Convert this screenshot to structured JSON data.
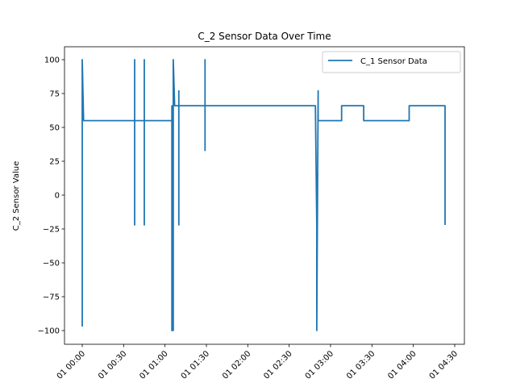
{
  "chart_data": {
    "type": "line",
    "title": "C_2 Sensor Data Over Time",
    "xlabel": "",
    "ylabel": "C_2 Sensor Value",
    "legend": {
      "placement": "top-right",
      "entries": [
        "C_1 Sensor Data"
      ]
    },
    "grid": false,
    "line_color": "#1f77b4",
    "xlim": [
      "00:00",
      "04:30"
    ],
    "ylim": [
      -110,
      110
    ],
    "y_ticks": [
      -100,
      -75,
      -50,
      -25,
      0,
      25,
      50,
      75,
      100
    ],
    "x_ticks": [
      {
        "t": "00:00",
        "label": "01 00:00"
      },
      {
        "t": "00:30",
        "label": "01 00:30"
      },
      {
        "t": "01:00",
        "label": "01 01:00"
      },
      {
        "t": "01:30",
        "label": "01 01:30"
      },
      {
        "t": "02:00",
        "label": "01 02:00"
      },
      {
        "t": "02:30",
        "label": "01 02:30"
      },
      {
        "t": "03:00",
        "label": "01 03:00"
      },
      {
        "t": "03:30",
        "label": "01 03:30"
      },
      {
        "t": "04:00",
        "label": "01 04:00"
      },
      {
        "t": "04:30",
        "label": "01 04:30"
      }
    ],
    "series": [
      {
        "name": "C_1 Sensor Data",
        "points": [
          [
            "00:00",
            -97
          ],
          [
            "00:00",
            -55
          ],
          [
            "00:00",
            100
          ],
          [
            "00:01",
            55
          ],
          [
            "00:38",
            55
          ],
          [
            "00:38",
            -22
          ],
          [
            "00:38",
            100
          ],
          [
            "00:38",
            55
          ],
          [
            "00:45",
            55
          ],
          [
            "00:45",
            -22
          ],
          [
            "00:45",
            100
          ],
          [
            "00:45",
            55
          ],
          [
            "01:05",
            55
          ],
          [
            "01:05",
            -100
          ],
          [
            "01:05",
            66
          ],
          [
            "01:06",
            -100
          ],
          [
            "01:06",
            100
          ],
          [
            "01:07",
            66
          ],
          [
            "01:10",
            66
          ],
          [
            "01:10",
            -22
          ],
          [
            "01:10",
            77
          ],
          [
            "01:10",
            66
          ],
          [
            "01:29",
            66
          ],
          [
            "01:29",
            33
          ],
          [
            "01:29",
            100
          ],
          [
            "01:29",
            66
          ],
          [
            "02:49",
            66
          ],
          [
            "02:50",
            -22
          ],
          [
            "02:50",
            -100
          ],
          [
            "02:51",
            77
          ],
          [
            "02:51",
            55
          ],
          [
            "03:08",
            55
          ],
          [
            "03:08",
            66
          ],
          [
            "03:24",
            66
          ],
          [
            "03:24",
            55
          ],
          [
            "03:57",
            55
          ],
          [
            "03:57",
            66
          ],
          [
            "04:23",
            66
          ],
          [
            "04:23",
            -22
          ]
        ]
      }
    ]
  }
}
